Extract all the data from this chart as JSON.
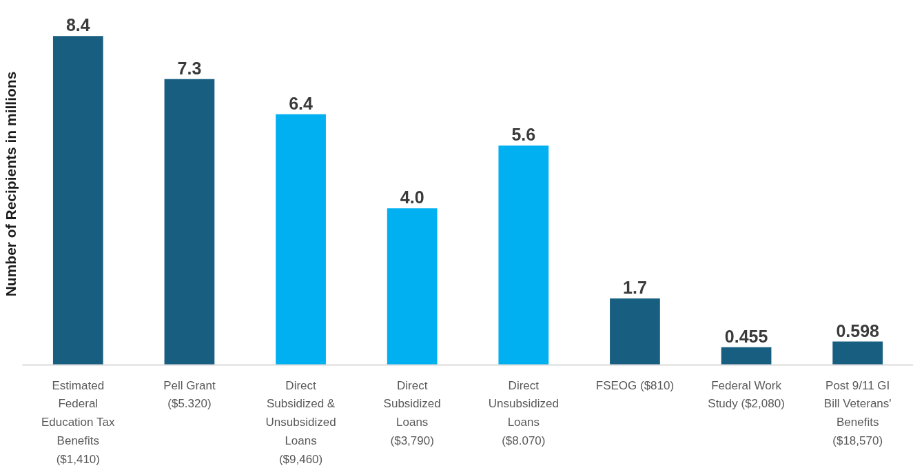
{
  "chart_data": {
    "type": "bar",
    "ylabel": "Number of Recipients in millions",
    "categories": [
      "Estimated\nFederal\nEducation Tax\nBenefits\n($1,410)",
      "Pell Grant\n($5.320)",
      "Direct\nSubsidized &\nUnsubsidized\nLoans\n($9,460)",
      "Direct\nSubsidized\nLoans\n($3,790)",
      "Direct\nUnsubsidized\nLoans\n($8.070)",
      "FSEOG ($810)",
      "Federal Work\nStudy ($2,080)",
      "Post 9/11 GI\nBill Veterans'\nBenefits\n($18,570)"
    ],
    "values": [
      8.4,
      7.3,
      6.4,
      4.0,
      5.6,
      1.7,
      0.455,
      0.598
    ],
    "value_labels": [
      "8.4",
      "7.3",
      "6.4",
      "4.0",
      "5.6",
      "1.7",
      "0.455",
      "0.598"
    ],
    "colors": [
      "#175e80",
      "#175e80",
      "#00b0f0",
      "#00b0f0",
      "#00b0f0",
      "#175e80",
      "#175e80",
      "#175e80"
    ],
    "tick_labels": "x"
  }
}
